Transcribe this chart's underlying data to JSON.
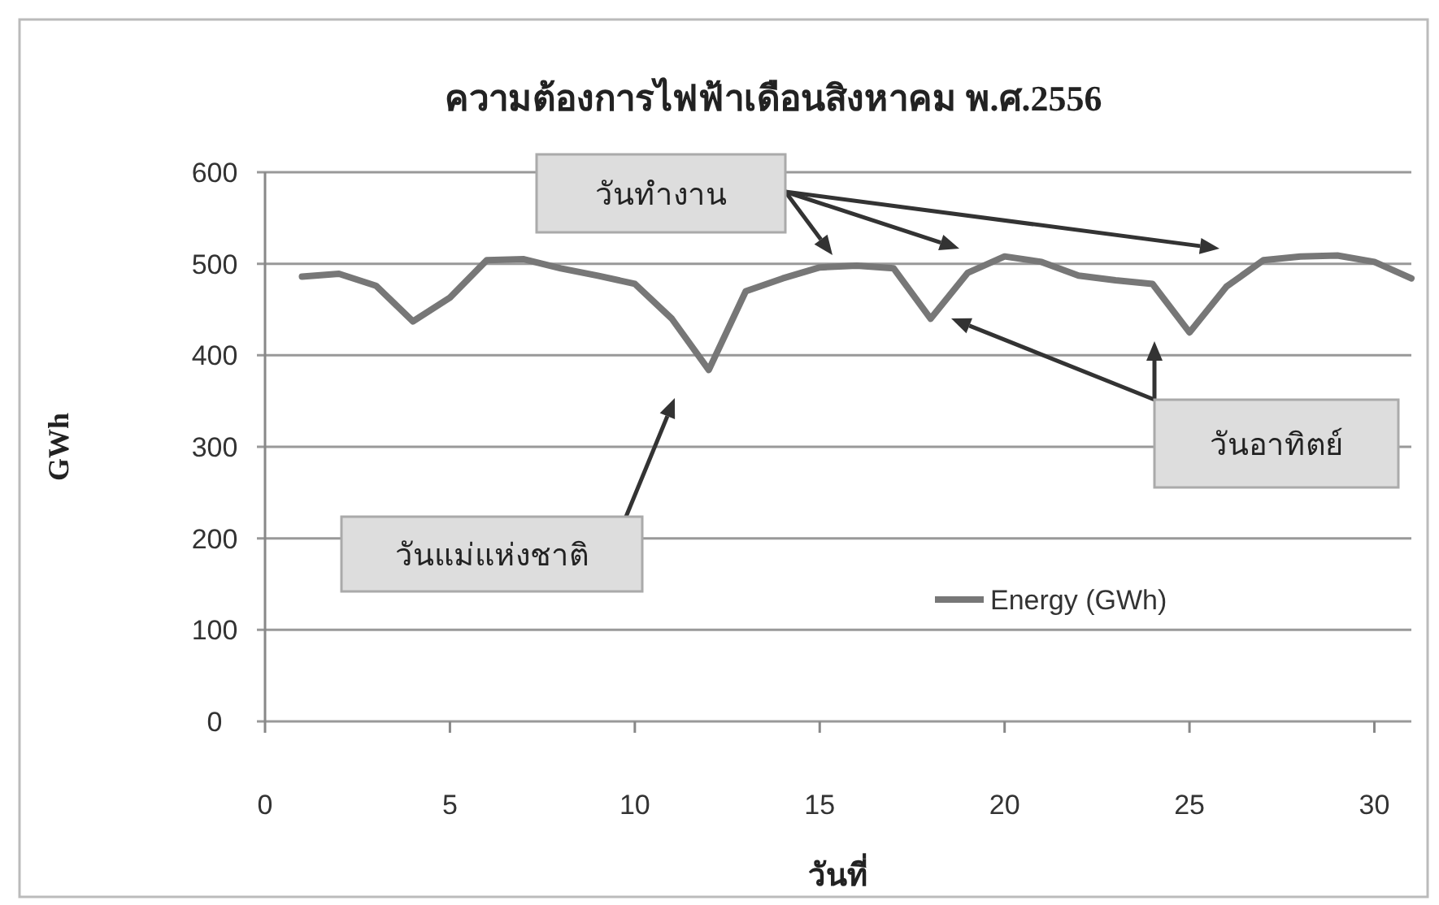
{
  "chart_data": {
    "type": "line",
    "title": "ความต้องการไฟฟ้าเดือนสิงหาคม พ.ศ.2556",
    "xlabel": "วันที่",
    "ylabel": "GWh",
    "x": [
      1,
      2,
      3,
      4,
      5,
      6,
      7,
      8,
      9,
      10,
      11,
      12,
      13,
      14,
      15,
      16,
      17,
      18,
      19,
      20,
      21,
      22,
      23,
      24,
      25,
      26,
      27,
      28,
      29,
      30,
      31
    ],
    "series": [
      {
        "name": "Energy (GWh)",
        "color": "#777777",
        "values": [
          486,
          489,
          476,
          437,
          463,
          504,
          505,
          495,
          487,
          478,
          440,
          384,
          470,
          484,
          496,
          498,
          495,
          440,
          490,
          508,
          502,
          487,
          482,
          478,
          425,
          475,
          504,
          508,
          509,
          502,
          484
        ]
      }
    ],
    "xlim": [
      0,
      31
    ],
    "xticks": [
      0,
      5,
      10,
      15,
      20,
      25,
      30
    ],
    "ylim": [
      0,
      600
    ],
    "yticks": [
      0,
      100,
      200,
      300,
      400,
      500,
      600
    ],
    "grid": "y",
    "legend": "bottom right",
    "annotations": [
      "วันทำงาน",
      "วันแม่แห่งชาติ",
      "วันอาทิตย์"
    ]
  }
}
